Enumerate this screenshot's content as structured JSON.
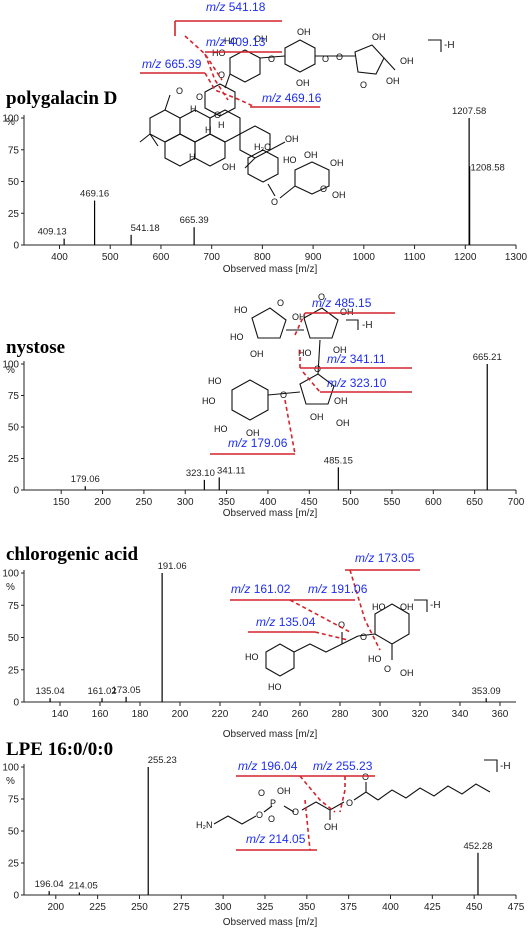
{
  "chart_data": [
    {
      "type": "bar",
      "title": "polygalacin D",
      "xlabel": "Observed mass [m/z]",
      "ylabel": "%",
      "xlim": [
        330,
        1300
      ],
      "ylim": [
        0,
        100
      ],
      "x_ticks": [
        400,
        500,
        600,
        700,
        800,
        900,
        1000,
        1100,
        1200,
        1300
      ],
      "y_ticks": [
        0,
        25,
        50,
        75,
        100
      ],
      "peaks": [
        {
          "x": 409.13,
          "y": 5,
          "label": "409.13"
        },
        {
          "x": 469.16,
          "y": 35,
          "label": "469.16"
        },
        {
          "x": 541.18,
          "y": 8,
          "label": "541.18"
        },
        {
          "x": 665.39,
          "y": 14,
          "label": "665.39"
        },
        {
          "x": 1207.58,
          "y": 100,
          "label": "1207.58"
        },
        {
          "x": 1208.58,
          "y": 62,
          "label": "1208.58"
        }
      ],
      "annotations": [
        "541.18",
        "409.13",
        "665.39",
        "469.16"
      ],
      "ion_suffix": "-H"
    },
    {
      "type": "bar",
      "title": "nystose",
      "xlabel": "Observed mass [m/z]",
      "ylabel": "%",
      "xlim": [
        105,
        700
      ],
      "ylim": [
        0,
        100
      ],
      "x_ticks": [
        150,
        200,
        250,
        300,
        350,
        400,
        450,
        500,
        550,
        600,
        650,
        700
      ],
      "y_ticks": [
        0,
        25,
        50,
        75,
        100
      ],
      "peaks": [
        {
          "x": 179.06,
          "y": 3,
          "label": "179.06"
        },
        {
          "x": 323.1,
          "y": 8,
          "label": "323.10"
        },
        {
          "x": 341.11,
          "y": 10,
          "label": "341.11"
        },
        {
          "x": 485.15,
          "y": 18,
          "label": "485.15"
        },
        {
          "x": 665.21,
          "y": 100,
          "label": "665.21"
        }
      ],
      "annotations": [
        "485.15",
        "341.11",
        "323.10",
        "179.06"
      ],
      "ion_suffix": "-H"
    },
    {
      "type": "bar",
      "title": "chlorogenic acid",
      "xlabel": "Observed mass [m/z]",
      "ylabel": "%",
      "xlim": [
        122,
        368
      ],
      "ylim": [
        0,
        100
      ],
      "x_ticks": [
        140,
        160,
        180,
        200,
        220,
        240,
        260,
        280,
        300,
        320,
        340,
        360
      ],
      "y_ticks": [
        0,
        25,
        50,
        75,
        100
      ],
      "peaks": [
        {
          "x": 135.04,
          "y": 3,
          "label": "135.04"
        },
        {
          "x": 161.02,
          "y": 3,
          "label": "161.02"
        },
        {
          "x": 173.05,
          "y": 4,
          "label": "173.05"
        },
        {
          "x": 191.06,
          "y": 100,
          "label": "191.06"
        },
        {
          "x": 353.09,
          "y": 3,
          "label": "353.09"
        }
      ],
      "annotations": [
        "173.05",
        "161.02",
        "191.06",
        "135.04"
      ],
      "ion_suffix": "-H"
    },
    {
      "type": "bar",
      "title": "LPE 16:0/0:0",
      "xlabel": "Observed mass [m/z]",
      "ylabel": "%",
      "xlim": [
        181,
        475
      ],
      "ylim": [
        0,
        100
      ],
      "x_ticks": [
        200,
        225,
        250,
        275,
        300,
        325,
        350,
        375,
        400,
        425,
        450,
        475
      ],
      "y_ticks": [
        0,
        25,
        50,
        75,
        100
      ],
      "peaks": [
        {
          "x": 196.04,
          "y": 3,
          "label": "196.04"
        },
        {
          "x": 214.05,
          "y": 2,
          "label": "214.05"
        },
        {
          "x": 255.23,
          "y": 100,
          "label": "255.23"
        },
        {
          "x": 452.28,
          "y": 33,
          "label": "452.28"
        }
      ],
      "annotations": [
        "196.04",
        "255.23",
        "214.05"
      ],
      "ion_suffix": "-H"
    }
  ],
  "colors": {
    "annotation_text": "#1f2ff0",
    "fragment_lines": "#d4242b",
    "peaks": "#000000"
  }
}
